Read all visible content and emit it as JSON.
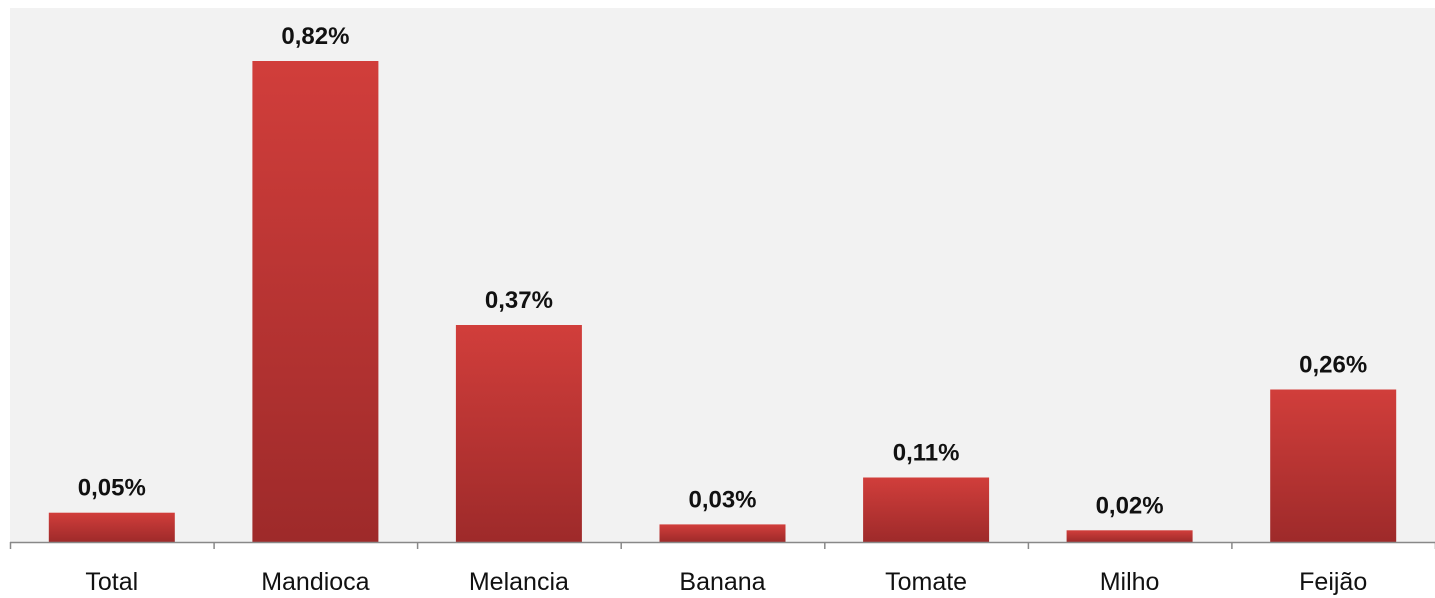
{
  "chart_data": {
    "type": "bar",
    "title": "",
    "xlabel": "",
    "ylabel": "",
    "categories": [
      "Total",
      "Mandioca",
      "Melancia",
      "Banana",
      "Tomate",
      "Milho",
      "Feijão"
    ],
    "values": [
      0.05,
      0.82,
      0.37,
      0.03,
      0.11,
      0.02,
      0.26
    ],
    "data_labels": [
      "0,05%",
      "0,82%",
      "0,37%",
      "0,03%",
      "0,11%",
      "0,02%",
      "0,26%"
    ],
    "unit": "%",
    "ylim": [
      0,
      0.9
    ],
    "grid": false,
    "legend": "none",
    "colors": {
      "bar_top": "#d13e3b",
      "bar_bottom": "#9e2a2a",
      "plot_background": "#f2f2f2",
      "axis": "#888888",
      "text": "#111111"
    }
  }
}
